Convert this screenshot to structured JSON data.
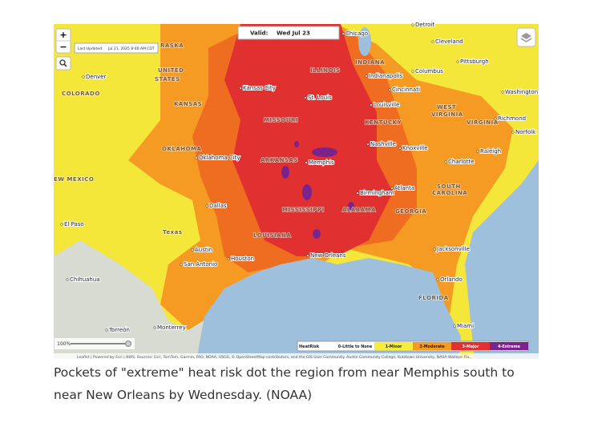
{
  "map": {
    "valid_label": "Valid:",
    "valid_date": "Wed  Jul 23",
    "last_updated_label": "Last Updated:",
    "last_updated_value": "Jul 21, 2025 8:46 AM CDT",
    "zoom_in": "+",
    "zoom_out": "−",
    "zoom_level": "100%",
    "labels": [
      "RASKA",
      "UNITED",
      "STATES",
      "COLORADO",
      "KANSAS",
      "OKLAHOMA",
      "EW MEXICO",
      "Texas",
      "MISSOURI",
      "ILLINOIS",
      "INDIANA",
      "KENTUCKY",
      "WEST",
      "VIRGINIA",
      "VIRGINIA",
      "ARKANSAS",
      "MISSISSIPPI",
      "ALABAMA",
      "GEORGIA",
      "SOUTH",
      "CAROLINA",
      "LOUISIANA",
      "FLORIDA",
      "Denver",
      "Kansas City",
      "St. Louis",
      "Chicago",
      "Cleveland",
      "Indianapolis",
      "Columbus",
      "Pittsburgh",
      "Cincinnati",
      "Louisville",
      "Washington",
      "Richmond",
      "Norfolk",
      "Nashville",
      "Knoxville",
      "Raleigh",
      "Charlotte",
      "Oklahoma City",
      "Memphis",
      "Birmingham",
      "Atlanta",
      "Dallas",
      "El Paso",
      "Austin",
      "San Antonio",
      "Houston",
      "New Orleans",
      "Jacksonville",
      "Orlando",
      "Chihuahua",
      "Monterrey",
      "Torreón",
      "Miami",
      "Detroit"
    ],
    "legend": {
      "title": "HeatRisk",
      "items": [
        {
          "label": "0-Little to None",
          "color": "#ffffff"
        },
        {
          "label": "1-Minor",
          "color": "#f7ec3b"
        },
        {
          "label": "2-Moderate",
          "color": "#f59a23"
        },
        {
          "label": "3-Major",
          "color": "#e0302f"
        },
        {
          "label": "4-Extreme",
          "color": "#7b238c"
        }
      ]
    },
    "attribution": "Leaflet | Powered by Esri | NWS. Sources: Esri, TomTom, Garmin, FAO, NOAA, USGS, © OpenStreetMap contributors, and the GIS User Community. Austin Community College, Kutztown University, NASA Walleye Fla..."
  },
  "caption": "Pockets of \"extreme\" heat risk dot the region from near Memphis south to near New Orleans by Wednesday. (NOAA)"
}
